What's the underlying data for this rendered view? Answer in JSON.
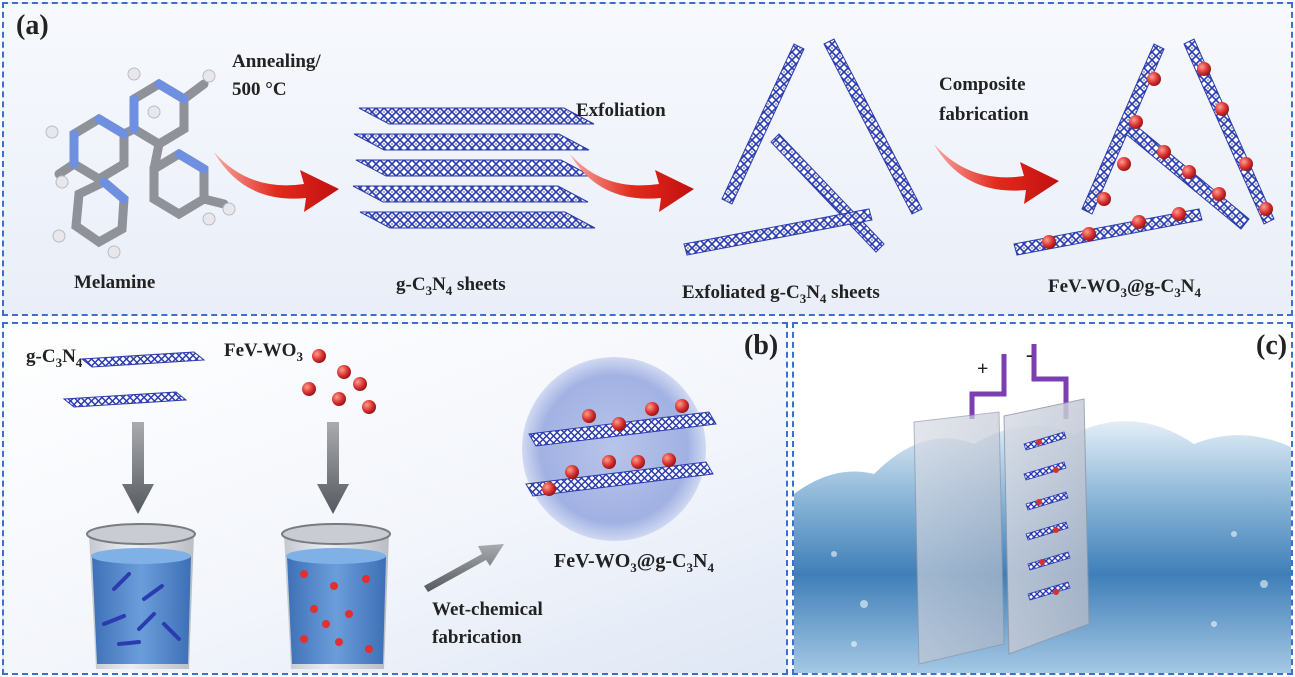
{
  "panel_a": {
    "tag": "(a)",
    "melamine": "Melamine",
    "step1_line1": "Annealing/",
    "step1_line2": "500 °C",
    "gcn_sheets": "g-C",
    "gcn_sheets_sub1": "3",
    "gcn_sheets_mid": "N",
    "gcn_sheets_sub2": "4",
    "gcn_sheets_tail": " sheets",
    "step2": "Exfoliation",
    "exf_pre": "Exfoliated g-C",
    "exf_sub1": "3",
    "exf_mid": "N",
    "exf_sub2": "4",
    "exf_tail": " sheets",
    "step3_line1": "Composite",
    "step3_line2": "fabrication",
    "comp_pre": "FeV-WO",
    "comp_sub1": "3",
    "comp_mid": "@g-C",
    "comp_sub2": "3",
    "comp_mid2": "N",
    "comp_sub3": "4"
  },
  "panel_b": {
    "tag": "(b)",
    "gcn_pre": "g-C",
    "gcn_sub1": "3",
    "gcn_mid": "N",
    "gcn_sub2": "4",
    "wo3_pre": "FeV-WO",
    "wo3_sub": "3",
    "comp_pre": "FeV-WO",
    "comp_sub1": "3",
    "comp_mid": "@g-C",
    "comp_sub2": "3",
    "comp_mid2": "N",
    "comp_sub3": "4",
    "wet_line1": "Wet-chemical",
    "wet_line2": "fabrication"
  },
  "panel_c": {
    "tag": "(c)",
    "plus": "+",
    "minus": "-"
  },
  "colors": {
    "border": "#3b6fd0",
    "sheet": "#2b3bb0",
    "particle": "#d63030",
    "arrow": "#d61818",
    "liquid": "#3f7fc8",
    "wire": "#7b3fb0"
  }
}
